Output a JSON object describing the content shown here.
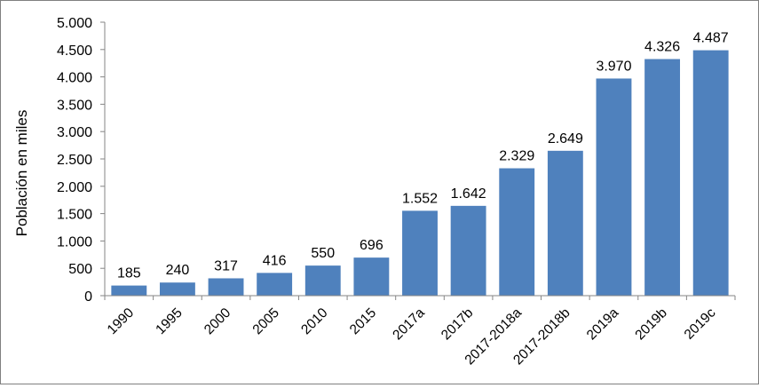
{
  "chart_data": {
    "type": "bar",
    "title": "",
    "xlabel": "",
    "ylabel": "Población en miles",
    "categories": [
      "1990",
      "1995",
      "2000",
      "2005",
      "2010",
      "2015",
      "2017a",
      "2017b",
      "2017-2018a",
      "2017-2018b",
      "2019a",
      "2019b",
      "2019c"
    ],
    "values": [
      185,
      240,
      317,
      416,
      550,
      696,
      1552,
      1642,
      2329,
      2649,
      3970,
      4326,
      4487
    ],
    "value_labels": [
      "185",
      "240",
      "317",
      "416",
      "550",
      "696",
      "1.552",
      "1.642",
      "2.329",
      "2.649",
      "3.970",
      "4.326",
      "4.487"
    ],
    "ylim": [
      0,
      5000
    ],
    "y_ticks": [
      0,
      500,
      1000,
      1500,
      2000,
      2500,
      3000,
      3500,
      4000,
      4500,
      5000
    ],
    "y_tick_labels": [
      "0",
      "500",
      "1.000",
      "1.500",
      "2.000",
      "2.500",
      "3.000",
      "3.500",
      "4.000",
      "4.500",
      "5.000"
    ],
    "grid": false,
    "legend": "none",
    "colors": {
      "bar": "#4f81bd",
      "plot_background": "#ffffff",
      "axis": "#868686",
      "frame": "#808080"
    }
  }
}
